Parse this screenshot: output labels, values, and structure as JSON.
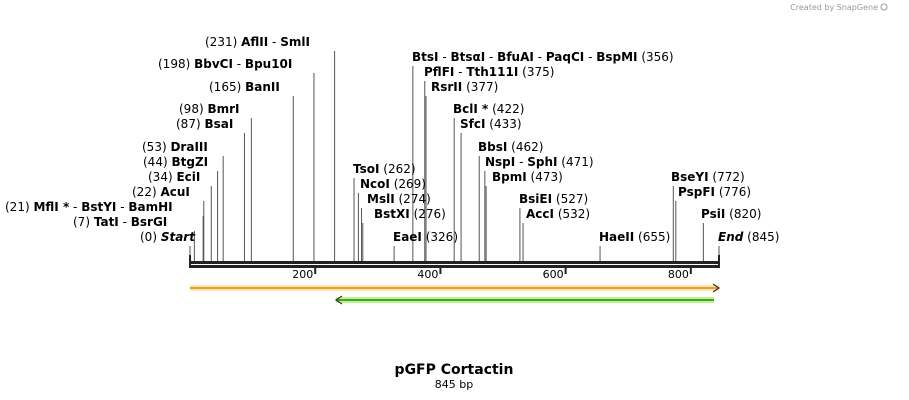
{
  "credit": "Created by SnapGene",
  "plasmid": {
    "name": "pGFP Cortactin",
    "length_label": "845 bp"
  },
  "ruler": {
    "total_bp": 845,
    "ticks": [
      200,
      400,
      600,
      800
    ]
  },
  "labels": [
    {
      "id": "start",
      "pos_text": "(0)",
      "parts": [
        {
          "name": "Start",
          "style": "italic"
        }
      ],
      "bp": 0
    },
    {
      "id": "tati",
      "pos_text": "(7)",
      "parts": [
        {
          "name": "TatI"
        },
        {
          "name": "BsrGI"
        }
      ],
      "bp": 7
    },
    {
      "id": "mfli",
      "pos_text": "(21)",
      "parts": [
        {
          "name": "MflI",
          "star": true
        },
        {
          "name": "BstYI"
        },
        {
          "name": "BamHI"
        }
      ],
      "bp": 21
    },
    {
      "id": "acui",
      "pos_text": "(22)",
      "parts": [
        {
          "name": "AcuI"
        }
      ],
      "bp": 22
    },
    {
      "id": "ecii",
      "pos_text": "(34)",
      "parts": [
        {
          "name": "EciI"
        }
      ],
      "bp": 34
    },
    {
      "id": "btgzi",
      "pos_text": "(44)",
      "parts": [
        {
          "name": "BtgZI"
        }
      ],
      "bp": 44
    },
    {
      "id": "draiii",
      "pos_text": "(53)",
      "parts": [
        {
          "name": "DraIII"
        }
      ],
      "bp": 53
    },
    {
      "id": "bsai",
      "pos_text": "(87)",
      "parts": [
        {
          "name": "BsaI"
        }
      ],
      "bp": 87
    },
    {
      "id": "bmri",
      "pos_text": "(98)",
      "parts": [
        {
          "name": "BmrI"
        }
      ],
      "bp": 98
    },
    {
      "id": "bani",
      "pos_text": "(165)",
      "parts": [
        {
          "name": "BanII"
        }
      ],
      "bp": 165
    },
    {
      "id": "bbvci",
      "pos_text": "(198)",
      "parts": [
        {
          "name": "BbvCI"
        },
        {
          "name": "Bpu10I"
        }
      ],
      "bp": 198
    },
    {
      "id": "aflii",
      "pos_text": "(231)",
      "parts": [
        {
          "name": "AflII"
        },
        {
          "name": "SmlI"
        }
      ],
      "bp": 231
    },
    {
      "id": "tsoi",
      "pos_text": "(262)",
      "parts": [
        {
          "name": "TsoI"
        }
      ],
      "bp": 262
    },
    {
      "id": "ncoi",
      "pos_text": "(269)",
      "parts": [
        {
          "name": "NcoI"
        }
      ],
      "bp": 269
    },
    {
      "id": "msli",
      "pos_text": "(274)",
      "parts": [
        {
          "name": "MslI"
        }
      ],
      "bp": 274
    },
    {
      "id": "bstxi",
      "pos_text": "(276)",
      "parts": [
        {
          "name": "BstXI"
        }
      ],
      "bp": 276
    },
    {
      "id": "eaei",
      "pos_text": "(326)",
      "parts": [
        {
          "name": "EaeI"
        }
      ],
      "bp": 326
    },
    {
      "id": "btsi",
      "pos_text": "(356)",
      "parts": [
        {
          "name": "BtsI"
        },
        {
          "name": "BtsαI"
        },
        {
          "name": "BfuAI"
        },
        {
          "name": "PaqCI"
        },
        {
          "name": "BspMI"
        }
      ],
      "bp": 356
    },
    {
      "id": "pflfi",
      "pos_text": "(375)",
      "parts": [
        {
          "name": "PflFI"
        },
        {
          "name": "Tth111I"
        }
      ],
      "bp": 375
    },
    {
      "id": "rsrii",
      "pos_text": "(377)",
      "parts": [
        {
          "name": "RsrII"
        }
      ],
      "bp": 377
    },
    {
      "id": "bcli",
      "pos_text": "(422)",
      "parts": [
        {
          "name": "BclI",
          "star": true
        }
      ],
      "bp": 422
    },
    {
      "id": "sfci",
      "pos_text": "(433)",
      "parts": [
        {
          "name": "SfcI"
        }
      ],
      "bp": 433
    },
    {
      "id": "bbsi",
      "pos_text": "(462)",
      "parts": [
        {
          "name": "BbsI"
        }
      ],
      "bp": 462
    },
    {
      "id": "nspi",
      "pos_text": "(471)",
      "parts": [
        {
          "name": "NspI"
        },
        {
          "name": "SphI"
        }
      ],
      "bp": 471
    },
    {
      "id": "bpmi",
      "pos_text": "(473)",
      "parts": [
        {
          "name": "BpmI"
        }
      ],
      "bp": 473
    },
    {
      "id": "bsiei",
      "pos_text": "(527)",
      "parts": [
        {
          "name": "BsiEI"
        }
      ],
      "bp": 527
    },
    {
      "id": "acci",
      "pos_text": "(532)",
      "parts": [
        {
          "name": "AccI"
        }
      ],
      "bp": 532
    },
    {
      "id": "haeii",
      "pos_text": "(655)",
      "parts": [
        {
          "name": "HaeII"
        }
      ],
      "bp": 655
    },
    {
      "id": "bseyi",
      "pos_text": "(772)",
      "parts": [
        {
          "name": "BseYI"
        }
      ],
      "bp": 772
    },
    {
      "id": "pspfi",
      "pos_text": "(776)",
      "parts": [
        {
          "name": "PspFI"
        }
      ],
      "bp": 776
    },
    {
      "id": "psii",
      "pos_text": "(820)",
      "parts": [
        {
          "name": "PsiI"
        }
      ],
      "bp": 820
    },
    {
      "id": "end",
      "pos_text": "(845)",
      "parts": [
        {
          "name": "End",
          "style": "italic"
        }
      ],
      "bp": 845
    }
  ],
  "features": [
    {
      "id": "orange",
      "start_bp": 0,
      "end_bp": 845,
      "direction": "forward",
      "color": "#e8a020",
      "fill": "#fbe6b4"
    },
    {
      "id": "green",
      "start_bp": 233,
      "end_bp": 845,
      "direction": "reverse",
      "color": "#3aa82a",
      "fill": "#c6f08c"
    }
  ]
}
